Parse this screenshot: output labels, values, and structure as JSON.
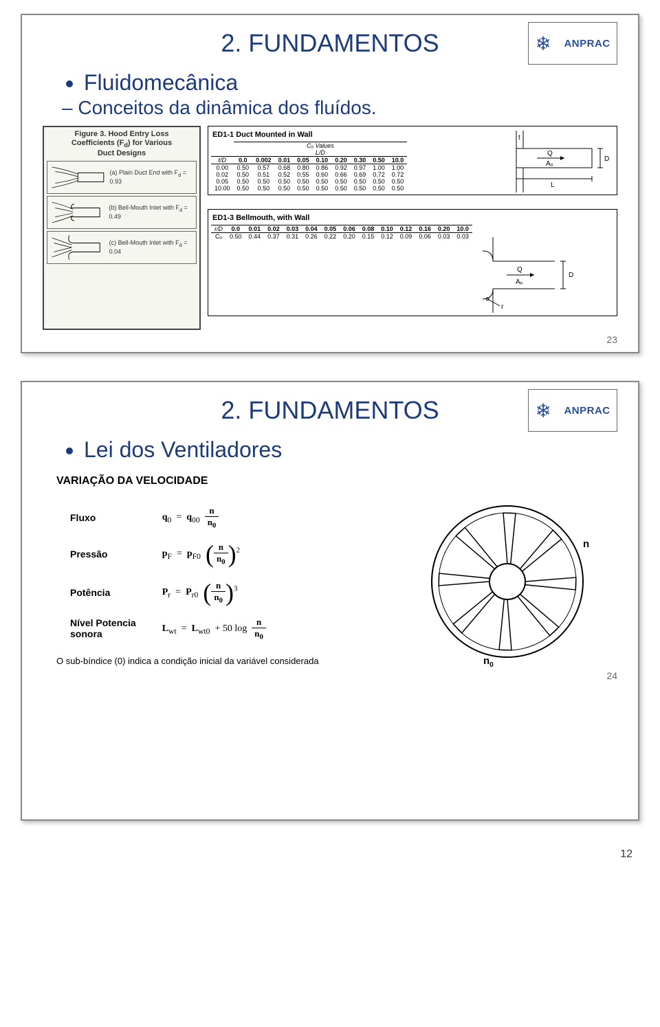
{
  "page_number_bottom": "12",
  "logo": {
    "brand": "ANPRAC"
  },
  "slide1": {
    "title": "2. FUNDAMENTOS",
    "bullet": "Fluidomecânica",
    "sub": "Conceitos da dinâmica dos fluídos.",
    "page_num": "23",
    "fig3": {
      "title_l1": "Figure 3.  Hood Entry Loss",
      "title_l2": "Coefficients (F",
      "title_l2b": ") for Various",
      "title_l3": "Duct Designs",
      "row_a": "(a)  Plain Duct End with F",
      "row_a_val": " = 0.93",
      "row_b": "(b)  Bell-Mouth Inlet with F",
      "row_b_val": " = 0.49",
      "row_c": "(c)  Bell-Mouth Inlet with F",
      "row_c_val": " = 0.04"
    },
    "ed1_1": {
      "caption": "ED1-1 Duct Mounted in Wall",
      "super_header": "Cₒ Values",
      "header2": "L/D",
      "cols": [
        "t/D",
        "0.0",
        "0.002",
        "0.01",
        "0.05",
        "0.10",
        "0.20",
        "0.30",
        "0.50",
        "10.0"
      ],
      "rows": [
        [
          "0.00",
          "0.50",
          "0.57",
          "0.68",
          "0.80",
          "0.86",
          "0.92",
          "0.97",
          "1.00",
          "1.00"
        ],
        [
          "0.02",
          "0.50",
          "0.51",
          "0.52",
          "0.55",
          "0.60",
          "0.66",
          "0.69",
          "0.72",
          "0.72"
        ],
        [
          "0.05",
          "0.50",
          "0.50",
          "0.50",
          "0.50",
          "0.50",
          "0.50",
          "0.50",
          "0.50",
          "0.50"
        ],
        [
          "10.00",
          "0.50",
          "0.50",
          "0.50",
          "0.50",
          "0.50",
          "0.50",
          "0.50",
          "0.50",
          "0.50"
        ]
      ],
      "diag_labels": {
        "t": "t",
        "Q": "Q",
        "A": "Aₒ",
        "L": "L",
        "D": "D"
      }
    },
    "ed1_3": {
      "caption": "ED1-3 Bellmouth, with Wall",
      "header": [
        "r/D",
        "0.0",
        "0.01",
        "0.02",
        "0.03",
        "0.04",
        "0.05",
        "0.06",
        "0.08",
        "0.10",
        "0.12",
        "0.16",
        "0.20",
        "10.0"
      ],
      "row": [
        "Cₒ",
        "0.50",
        "0.44",
        "0.37",
        "0.31",
        "0.26",
        "0.22",
        "0.20",
        "0.15",
        "0.12",
        "0.09",
        "0.06",
        "0.03",
        "0.03"
      ],
      "diag_labels": {
        "Q": "Q",
        "A": "Aₒ",
        "D": "D",
        "r": "r"
      }
    }
  },
  "slide2": {
    "title": "2. FUNDAMENTOS",
    "bullet": "Lei dos Ventiladores",
    "section": "VARIAÇÃO DA VELOCIDADE",
    "page_num": "24",
    "rows": {
      "flux_label": "Fluxo",
      "flux_var": "q",
      "flux_sub": "0",
      "flux_rhs": "q",
      "flux_rhs_sub": "00",
      "n": "n",
      "n0": "n",
      "n0sub": "0",
      "press_label": "Pressão",
      "press_var": "p",
      "press_sub": "F",
      "press_rhs": "p",
      "press_rhs_sub": "F0",
      "pot_label": "Potência",
      "pot_var": "P",
      "pot_sub": "r",
      "pot_rhs": "P",
      "pot_rhs_sub": "r0",
      "sound_label_l1": "Nível Potencia",
      "sound_label_l2": "sonora",
      "sound_var": "L",
      "sound_sub": "wt",
      "sound_rhs": "L",
      "sound_rhs_sub": "wt0",
      "sound_plus": "+ 50 log",
      "exp2": "2",
      "exp3": "3"
    },
    "fan_labels": {
      "n": "n",
      "n0": "n",
      "n0sub": "0"
    },
    "note": "O sub-bíndice (0) indica a condição inicial da variável considerada"
  }
}
